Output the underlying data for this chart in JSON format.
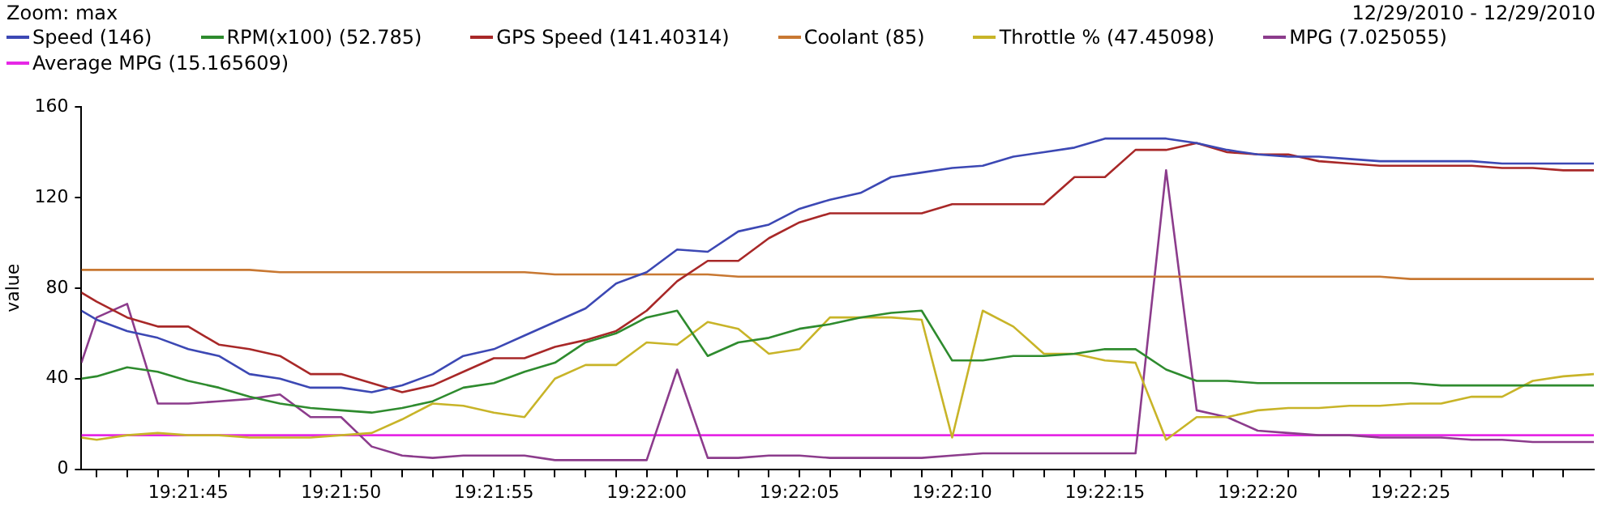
{
  "chart_data": {
    "type": "line",
    "ylabel": "value",
    "annotations": [
      "Zoom: max",
      "12/29/2010 - 12/29/2010"
    ],
    "x": [
      19.361528,
      19.361667,
      19.361944,
      19.362222,
      19.3625,
      19.362778,
      19.363056,
      19.363333,
      19.363611,
      19.363889,
      19.364167,
      19.364444,
      19.364722,
      19.365,
      19.365278,
      19.365556,
      19.365833,
      19.366111,
      19.366389,
      19.366667,
      19.366944,
      19.367222,
      19.3675,
      19.367778,
      19.368056,
      19.368333,
      19.368611,
      19.368889,
      19.369167,
      19.369444,
      19.369722,
      19.37,
      19.370278,
      19.370556,
      19.370833,
      19.371111,
      19.371389,
      19.371667,
      19.371944,
      19.372222,
      19.3725,
      19.372778,
      19.373056,
      19.373333,
      19.373611,
      19.373889,
      19.374167,
      19.374444,
      19.374722,
      19.375,
      19.375278
    ],
    "series": [
      {
        "name": "Speed (146)",
        "color": "#3c48b4",
        "values": [
          70,
          66,
          61,
          58,
          53,
          50,
          42,
          40,
          36,
          36,
          34,
          37,
          42,
          50,
          53,
          59,
          65,
          71,
          82,
          87,
          97,
          96,
          105,
          108,
          115,
          119,
          122,
          129,
          131,
          133,
          134,
          138,
          140,
          142,
          146,
          146,
          146,
          144,
          141,
          139,
          138,
          138,
          137,
          136,
          136,
          136,
          136,
          135,
          135,
          135,
          135
        ]
      },
      {
        "name": "RPM(x100) (52.785)",
        "color": "#2e8b2e",
        "values": [
          40,
          41,
          45,
          43,
          39,
          36,
          32,
          29,
          27,
          26,
          25,
          27,
          30,
          36,
          38,
          43,
          47,
          56,
          60,
          67,
          70,
          50,
          56,
          58,
          62,
          64,
          67,
          69,
          70,
          48,
          48,
          50,
          50,
          51,
          53,
          53,
          44,
          39,
          39,
          38,
          38,
          38,
          38,
          38,
          38,
          37,
          37,
          37,
          37,
          37,
          37
        ]
      },
      {
        "name": "GPS Speed (141.40314)",
        "color": "#a82828",
        "values": [
          78,
          74,
          67,
          63,
          63,
          55,
          53,
          50,
          42,
          42,
          38,
          34,
          37,
          43,
          49,
          49,
          54,
          57,
          61,
          70,
          83,
          92,
          92,
          102,
          109,
          113,
          113,
          113,
          113,
          117,
          117,
          117,
          117,
          129,
          129,
          141,
          141,
          144,
          140,
          139,
          139,
          136,
          135,
          134,
          134,
          134,
          134,
          133,
          133,
          132,
          132
        ]
      },
      {
        "name": "Coolant (85)",
        "color": "#c87832",
        "values": [
          88,
          88,
          88,
          88,
          88,
          88,
          88,
          87,
          87,
          87,
          87,
          87,
          87,
          87,
          87,
          87,
          86,
          86,
          86,
          86,
          86,
          86,
          85,
          85,
          85,
          85,
          85,
          85,
          85,
          85,
          85,
          85,
          85,
          85,
          85,
          85,
          85,
          85,
          85,
          85,
          85,
          85,
          85,
          85,
          84,
          84,
          84,
          84,
          84,
          84,
          84
        ]
      },
      {
        "name": "Throttle % (47.45098)",
        "color": "#c8b428",
        "values": [
          14,
          13,
          15,
          16,
          15,
          15,
          14,
          14,
          14,
          15,
          16,
          22,
          29,
          28,
          25,
          23,
          40,
          46,
          46,
          56,
          55,
          65,
          62,
          51,
          53,
          67,
          67,
          67,
          66,
          14,
          70,
          63,
          51,
          51,
          48,
          47,
          13,
          23,
          23,
          26,
          27,
          27,
          28,
          28,
          29,
          29,
          32,
          32,
          39,
          41,
          42
        ]
      },
      {
        "name": "MPG (7.025055)",
        "color": "#8c3c8c",
        "values": [
          47,
          67,
          73,
          29,
          29,
          30,
          31,
          33,
          23,
          23,
          10,
          6,
          5,
          6,
          6,
          6,
          4,
          4,
          4,
          4,
          44,
          5,
          5,
          6,
          6,
          5,
          5,
          5,
          5,
          6,
          7,
          7,
          7,
          7,
          7,
          7,
          132,
          26,
          23,
          17,
          16,
          15,
          15,
          14,
          14,
          14,
          13,
          13,
          12,
          12,
          12
        ]
      },
      {
        "name": "Average MPG (15.165609)",
        "color": "#e628e6",
        "values": [
          15,
          15,
          15,
          15,
          15,
          15,
          15,
          15,
          15,
          15,
          15,
          15,
          15,
          15,
          15,
          15,
          15,
          15,
          15,
          15,
          15,
          15,
          15,
          15,
          15,
          15,
          15,
          15,
          15,
          15,
          15,
          15,
          15,
          15,
          15,
          15,
          15,
          15,
          15,
          15,
          15,
          15,
          15,
          15,
          15,
          15,
          15,
          15,
          15,
          15,
          15
        ]
      }
    ],
    "xlim": [
      19.361528,
      19.375278
    ],
    "xticks": [
      {
        "value": 19.361667,
        "label": null
      },
      {
        "value": 19.361944,
        "label": null
      },
      {
        "value": 19.362222,
        "label": null
      },
      {
        "value": 19.3625,
        "label": "19:21:45"
      },
      {
        "value": 19.362778,
        "label": null
      },
      {
        "value": 19.363056,
        "label": null
      },
      {
        "value": 19.363333,
        "label": null
      },
      {
        "value": 19.363611,
        "label": null
      },
      {
        "value": 19.363889,
        "label": "19:21:50"
      },
      {
        "value": 19.364167,
        "label": null
      },
      {
        "value": 19.364444,
        "label": null
      },
      {
        "value": 19.364722,
        "label": null
      },
      {
        "value": 19.365,
        "label": null
      },
      {
        "value": 19.365278,
        "label": "19:21:55"
      },
      {
        "value": 19.365556,
        "label": null
      },
      {
        "value": 19.365833,
        "label": null
      },
      {
        "value": 19.366111,
        "label": null
      },
      {
        "value": 19.366389,
        "label": null
      },
      {
        "value": 19.366667,
        "label": "19:22:00"
      },
      {
        "value": 19.366944,
        "label": null
      },
      {
        "value": 19.367222,
        "label": null
      },
      {
        "value": 19.3675,
        "label": null
      },
      {
        "value": 19.367778,
        "label": null
      },
      {
        "value": 19.368056,
        "label": "19:22:05"
      },
      {
        "value": 19.368333,
        "label": null
      },
      {
        "value": 19.368611,
        "label": null
      },
      {
        "value": 19.368889,
        "label": null
      },
      {
        "value": 19.369167,
        "label": null
      },
      {
        "value": 19.369444,
        "label": "19:22:10"
      },
      {
        "value": 19.369722,
        "label": null
      },
      {
        "value": 19.37,
        "label": null
      },
      {
        "value": 19.370278,
        "label": null
      },
      {
        "value": 19.370556,
        "label": null
      },
      {
        "value": 19.370833,
        "label": "19:22:15"
      },
      {
        "value": 19.371111,
        "label": null
      },
      {
        "value": 19.371389,
        "label": null
      },
      {
        "value": 19.371667,
        "label": null
      },
      {
        "value": 19.371944,
        "label": null
      },
      {
        "value": 19.372222,
        "label": "19:22:20"
      },
      {
        "value": 19.3725,
        "label": null
      },
      {
        "value": 19.372778,
        "label": null
      },
      {
        "value": 19.373056,
        "label": null
      },
      {
        "value": 19.373333,
        "label": null
      },
      {
        "value": 19.373611,
        "label": "19:22:25"
      },
      {
        "value": 19.373889,
        "label": null
      },
      {
        "value": 19.374167,
        "label": null
      },
      {
        "value": 19.374444,
        "label": null
      },
      {
        "value": 19.374722,
        "label": null
      },
      {
        "value": 19.375,
        "label": null
      }
    ],
    "ylim": [
      0,
      160
    ],
    "yticks": [
      0,
      40,
      80,
      120,
      160
    ],
    "grid": false,
    "legend": "top",
    "line_style": "solid"
  }
}
